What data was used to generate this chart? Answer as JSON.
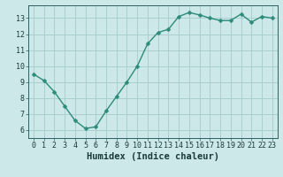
{
  "x": [
    0,
    1,
    2,
    3,
    4,
    5,
    6,
    7,
    8,
    9,
    10,
    11,
    12,
    13,
    14,
    15,
    16,
    17,
    18,
    19,
    20,
    21,
    22,
    23
  ],
  "y": [
    9.5,
    9.1,
    8.4,
    7.5,
    6.6,
    6.1,
    6.2,
    7.2,
    8.1,
    9.0,
    10.0,
    11.4,
    12.1,
    12.3,
    13.1,
    13.35,
    13.2,
    13.0,
    12.85,
    12.85,
    13.25,
    12.75,
    13.1,
    13.0
  ],
  "line_color": "#2d8b7a",
  "marker_color": "#2d8b7a",
  "bg_color": "#cce8e8",
  "grid_color": "#aacfcf",
  "xlabel": "Humidex (Indice chaleur)",
  "xlim": [
    -0.5,
    23.5
  ],
  "ylim": [
    5.5,
    13.8
  ],
  "yticks": [
    6,
    7,
    8,
    9,
    10,
    11,
    12,
    13
  ],
  "xticks": [
    0,
    1,
    2,
    3,
    4,
    5,
    6,
    7,
    8,
    9,
    10,
    11,
    12,
    13,
    14,
    15,
    16,
    17,
    18,
    19,
    20,
    21,
    22,
    23
  ],
  "tick_fontsize": 6,
  "xlabel_fontsize": 7.5,
  "marker_size": 2.5,
  "line_width": 1.0
}
